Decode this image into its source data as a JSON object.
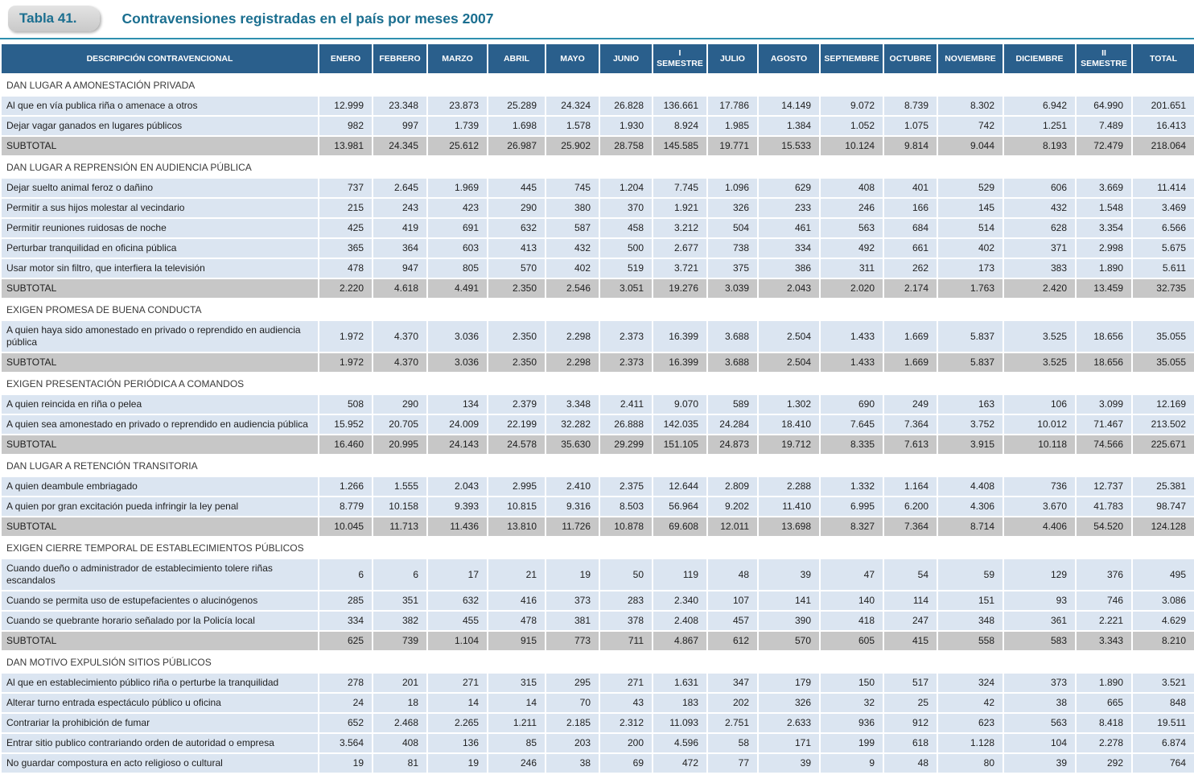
{
  "page": {
    "tab_label": "Tabla 41.",
    "title": "Contravensiones registradas en el país por meses 2007"
  },
  "colors": {
    "header_bg": "#2A5F8C",
    "data_row_bg": "#DBE5F1",
    "subtotal_bg": "#C7C7C7",
    "accent_teal": "#2E8FAE",
    "title_text": "#1B6F90"
  },
  "table": {
    "columns": [
      "DESCRIPCIÓN CONTRAVENCIONAL",
      "ENERO",
      "FEBRERO",
      "MARZO",
      "ABRIL",
      "MAYO",
      "JUNIO",
      "I SEMESTRE",
      "JULIO",
      "AGOSTO",
      "SEPTIEMBRE",
      "OCTUBRE",
      "NOVIEMBRE",
      "DICIEMBRE",
      "II SEMESTRE",
      "TOTAL"
    ],
    "sections": [
      {
        "header": "DAN LUGAR A AMONESTACIÓN PRIVADA",
        "rows": [
          {
            "label": "Al que en vía publica riña o amenace a otros",
            "values": [
              "12.999",
              "23.348",
              "23.873",
              "25.289",
              "24.324",
              "26.828",
              "136.661",
              "17.786",
              "14.149",
              "9.072",
              "8.739",
              "8.302",
              "6.942",
              "64.990",
              "201.651"
            ]
          },
          {
            "label": "Dejar vagar ganados en lugares públicos",
            "values": [
              "982",
              "997",
              "1.739",
              "1.698",
              "1.578",
              "1.930",
              "8.924",
              "1.985",
              "1.384",
              "1.052",
              "1.075",
              "742",
              "1.251",
              "7.489",
              "16.413"
            ]
          },
          {
            "label": "SUBTOTAL",
            "subtotal": true,
            "values": [
              "13.981",
              "24.345",
              "25.612",
              "26.987",
              "25.902",
              "28.758",
              "145.585",
              "19.771",
              "15.533",
              "10.124",
              "9.814",
              "9.044",
              "8.193",
              "72.479",
              "218.064"
            ]
          }
        ]
      },
      {
        "header": "DAN LUGAR A REPRENSIÓN EN AUDIENCIA PÚBLICA",
        "rows": [
          {
            "label": "Dejar suelto animal feroz o dañino",
            "values": [
              "737",
              "2.645",
              "1.969",
              "445",
              "745",
              "1.204",
              "7.745",
              "1.096",
              "629",
              "408",
              "401",
              "529",
              "606",
              "3.669",
              "11.414"
            ]
          },
          {
            "label": "Permitir a sus hijos molestar al vecindario",
            "values": [
              "215",
              "243",
              "423",
              "290",
              "380",
              "370",
              "1.921",
              "326",
              "233",
              "246",
              "166",
              "145",
              "432",
              "1.548",
              "3.469"
            ]
          },
          {
            "label": "Permitir reuniones ruidosas de noche",
            "values": [
              "425",
              "419",
              "691",
              "632",
              "587",
              "458",
              "3.212",
              "504",
              "461",
              "563",
              "684",
              "514",
              "628",
              "3.354",
              "6.566"
            ]
          },
          {
            "label": "Perturbar tranquilidad en oficina pública",
            "values": [
              "365",
              "364",
              "603",
              "413",
              "432",
              "500",
              "2.677",
              "738",
              "334",
              "492",
              "661",
              "402",
              "371",
              "2.998",
              "5.675"
            ]
          },
          {
            "label": "Usar motor sin filtro, que interfiera la televisión",
            "values": [
              "478",
              "947",
              "805",
              "570",
              "402",
              "519",
              "3.721",
              "375",
              "386",
              "311",
              "262",
              "173",
              "383",
              "1.890",
              "5.611"
            ]
          },
          {
            "label": "SUBTOTAL",
            "subtotal": true,
            "values": [
              "2.220",
              "4.618",
              "4.491",
              "2.350",
              "2.546",
              "3.051",
              "19.276",
              "3.039",
              "2.043",
              "2.020",
              "2.174",
              "1.763",
              "2.420",
              "13.459",
              "32.735"
            ]
          }
        ]
      },
      {
        "header": "EXIGEN PROMESA DE BUENA CONDUCTA",
        "rows": [
          {
            "label": "A quien haya sido amonestado en privado o reprendido en audiencia pública",
            "values": [
              "1.972",
              "4.370",
              "3.036",
              "2.350",
              "2.298",
              "2.373",
              "16.399",
              "3.688",
              "2.504",
              "1.433",
              "1.669",
              "5.837",
              "3.525",
              "18.656",
              "35.055"
            ]
          },
          {
            "label": "SUBTOTAL",
            "subtotal": true,
            "values": [
              "1.972",
              "4.370",
              "3.036",
              "2.350",
              "2.298",
              "2.373",
              "16.399",
              "3.688",
              "2.504",
              "1.433",
              "1.669",
              "5.837",
              "3.525",
              "18.656",
              "35.055"
            ]
          }
        ]
      },
      {
        "header": "EXIGEN PRESENTACIÓN PERIÓDICA A COMANDOS",
        "rows": [
          {
            "label": "A quien reincida en riña o pelea",
            "values": [
              "508",
              "290",
              "134",
              "2.379",
              "3.348",
              "2.411",
              "9.070",
              "589",
              "1.302",
              "690",
              "249",
              "163",
              "106",
              "3.099",
              "12.169"
            ]
          },
          {
            "label": "A quien sea amonestado en privado o reprendido en audiencia pública",
            "values": [
              "15.952",
              "20.705",
              "24.009",
              "22.199",
              "32.282",
              "26.888",
              "142.035",
              "24.284",
              "18.410",
              "7.645",
              "7.364",
              "3.752",
              "10.012",
              "71.467",
              "213.502"
            ]
          },
          {
            "label": "SUBTOTAL",
            "subtotal": true,
            "values": [
              "16.460",
              "20.995",
              "24.143",
              "24.578",
              "35.630",
              "29.299",
              "151.105",
              "24.873",
              "19.712",
              "8.335",
              "7.613",
              "3.915",
              "10.118",
              "74.566",
              "225.671"
            ]
          }
        ]
      },
      {
        "header": "DAN LUGAR A RETENCIÓN TRANSITORIA",
        "rows": [
          {
            "label": "A quien deambule embriagado",
            "values": [
              "1.266",
              "1.555",
              "2.043",
              "2.995",
              "2.410",
              "2.375",
              "12.644",
              "2.809",
              "2.288",
              "1.332",
              "1.164",
              "4.408",
              "736",
              "12.737",
              "25.381"
            ]
          },
          {
            "label": "A quien por gran excitación pueda infringir la ley penal",
            "values": [
              "8.779",
              "10.158",
              "9.393",
              "10.815",
              "9.316",
              "8.503",
              "56.964",
              "9.202",
              "11.410",
              "6.995",
              "6.200",
              "4.306",
              "3.670",
              "41.783",
              "98.747"
            ]
          },
          {
            "label": "SUBTOTAL",
            "subtotal": true,
            "values": [
              "10.045",
              "11.713",
              "11.436",
              "13.810",
              "11.726",
              "10.878",
              "69.608",
              "12.011",
              "13.698",
              "8.327",
              "7.364",
              "8.714",
              "4.406",
              "54.520",
              "124.128"
            ]
          }
        ]
      },
      {
        "header": "EXIGEN CIERRE TEMPORAL DE ESTABLECIMIENTOS PÚBLICOS",
        "rows": [
          {
            "label": "Cuando dueño o administrador de establecimiento tolere riñas escandalos",
            "values": [
              "6",
              "6",
              "17",
              "21",
              "19",
              "50",
              "119",
              "48",
              "39",
              "47",
              "54",
              "59",
              "129",
              "376",
              "495"
            ]
          },
          {
            "label": "Cuando se permita uso de estupefacientes o alucinógenos",
            "values": [
              "285",
              "351",
              "632",
              "416",
              "373",
              "283",
              "2.340",
              "107",
              "141",
              "140",
              "114",
              "151",
              "93",
              "746",
              "3.086"
            ]
          },
          {
            "label": "Cuando se quebrante horario señalado por la Policía local",
            "values": [
              "334",
              "382",
              "455",
              "478",
              "381",
              "378",
              "2.408",
              "457",
              "390",
              "418",
              "247",
              "348",
              "361",
              "2.221",
              "4.629"
            ]
          },
          {
            "label": "SUBTOTAL",
            "subtotal": true,
            "values": [
              "625",
              "739",
              "1.104",
              "915",
              "773",
              "711",
              "4.867",
              "612",
              "570",
              "605",
              "415",
              "558",
              "583",
              "3.343",
              "8.210"
            ]
          }
        ]
      },
      {
        "header": "DAN MOTIVO EXPULSIÓN SITIOS PÚBLICOS",
        "rows": [
          {
            "label": "Al que en establecimiento público riña o perturbe la tranquilidad",
            "values": [
              "278",
              "201",
              "271",
              "315",
              "295",
              "271",
              "1.631",
              "347",
              "179",
              "150",
              "517",
              "324",
              "373",
              "1.890",
              "3.521"
            ]
          },
          {
            "label": "Alterar turno entrada espectáculo público u oficina",
            "values": [
              "24",
              "18",
              "14",
              "14",
              "70",
              "43",
              "183",
              "202",
              "326",
              "32",
              "25",
              "42",
              "38",
              "665",
              "848"
            ]
          },
          {
            "label": "Contrariar la prohibición de fumar",
            "values": [
              "652",
              "2.468",
              "2.265",
              "1.211",
              "2.185",
              "2.312",
              "11.093",
              "2.751",
              "2.633",
              "936",
              "912",
              "623",
              "563",
              "8.418",
              "19.511"
            ]
          },
          {
            "label": "Entrar sitio publico contrariando orden de autoridad o empresa",
            "values": [
              "3.564",
              "408",
              "136",
              "85",
              "203",
              "200",
              "4.596",
              "58",
              "171",
              "199",
              "618",
              "1.128",
              "104",
              "2.278",
              "6.874"
            ]
          },
          {
            "label": "No guardar compostura en acto religioso o cultural",
            "values": [
              "19",
              "81",
              "19",
              "246",
              "38",
              "69",
              "472",
              "77",
              "39",
              "9",
              "48",
              "80",
              "39",
              "292",
              "764"
            ]
          }
        ]
      }
    ]
  }
}
